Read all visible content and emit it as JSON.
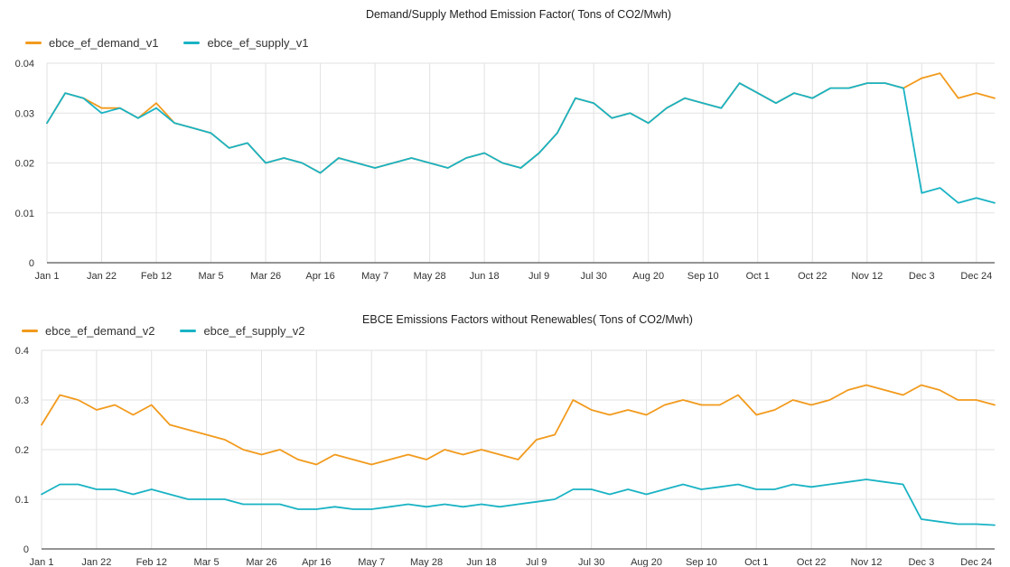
{
  "colors": {
    "demand": "#f29a1c",
    "supply": "#19b3c4",
    "grid": "#e2e2e2",
    "axis": "#555555"
  },
  "chart_data": [
    {
      "type": "line",
      "title": "Demand/Supply Method Emission Factor( Tons of CO2/Mwh)",
      "xlabel": "",
      "ylabel": "",
      "ylim": [
        0,
        0.04
      ],
      "y_ticks": [
        "0",
        "0.01",
        "0.02",
        "0.03",
        "0.04"
      ],
      "x_ticks": [
        "Jan 1",
        "Jan 22",
        "Feb 12",
        "Mar 5",
        "Mar 26",
        "Apr 16",
        "May 7",
        "May 28",
        "Jun 18",
        "Jul 9",
        "Jul 30",
        "Aug 20",
        "Sep 10",
        "Oct 1",
        "Oct 22",
        "Nov 12",
        "Dec 3",
        "Dec 24"
      ],
      "grid": true,
      "legend": "top-left",
      "series": [
        {
          "name": "ebce_ef_demand_v1",
          "x": [
            "Jan 1",
            "Jan 8",
            "Jan 15",
            "Jan 22",
            "Jan 29",
            "Feb 5",
            "Feb 12",
            "Feb 19",
            "Feb 26",
            "Mar 5",
            "Mar 12",
            "Mar 19",
            "Mar 26",
            "Apr 2",
            "Apr 9",
            "Apr 16",
            "Apr 23",
            "Apr 30",
            "May 7",
            "May 14",
            "May 21",
            "May 28",
            "Jun 4",
            "Jun 11",
            "Jun 18",
            "Jun 25",
            "Jul 2",
            "Jul 9",
            "Jul 16",
            "Jul 23",
            "Jul 30",
            "Aug 6",
            "Aug 13",
            "Aug 20",
            "Aug 27",
            "Sep 3",
            "Sep 10",
            "Sep 17",
            "Sep 24",
            "Oct 1",
            "Oct 8",
            "Oct 15",
            "Oct 22",
            "Oct 29",
            "Nov 5",
            "Nov 12",
            "Nov 19",
            "Nov 26",
            "Dec 3",
            "Dec 10",
            "Dec 17",
            "Dec 24",
            "Dec 31"
          ],
          "values": [
            0.028,
            0.034,
            0.033,
            0.031,
            0.031,
            0.029,
            0.032,
            0.028,
            0.027,
            0.026,
            0.023,
            0.024,
            0.02,
            0.021,
            0.02,
            0.018,
            0.021,
            0.02,
            0.019,
            0.02,
            0.021,
            0.02,
            0.019,
            0.021,
            0.022,
            0.02,
            0.019,
            0.022,
            0.026,
            0.033,
            0.032,
            0.029,
            0.03,
            0.028,
            0.031,
            0.033,
            0.032,
            0.031,
            0.036,
            0.034,
            0.032,
            0.034,
            0.033,
            0.035,
            0.035,
            0.036,
            0.036,
            0.035,
            0.037,
            0.038,
            0.033,
            0.034,
            0.033
          ]
        },
        {
          "name": "ebce_ef_supply_v1",
          "x": [
            "Jan 1",
            "Jan 8",
            "Jan 15",
            "Jan 22",
            "Jan 29",
            "Feb 5",
            "Feb 12",
            "Feb 19",
            "Feb 26",
            "Mar 5",
            "Mar 12",
            "Mar 19",
            "Mar 26",
            "Apr 2",
            "Apr 9",
            "Apr 16",
            "Apr 23",
            "Apr 30",
            "May 7",
            "May 14",
            "May 21",
            "May 28",
            "Jun 4",
            "Jun 11",
            "Jun 18",
            "Jun 25",
            "Jul 2",
            "Jul 9",
            "Jul 16",
            "Jul 23",
            "Jul 30",
            "Aug 6",
            "Aug 13",
            "Aug 20",
            "Aug 27",
            "Sep 3",
            "Sep 10",
            "Sep 17",
            "Sep 24",
            "Oct 1",
            "Oct 8",
            "Oct 15",
            "Oct 22",
            "Oct 29",
            "Nov 5",
            "Nov 12",
            "Nov 19",
            "Nov 26",
            "Dec 3",
            "Dec 10",
            "Dec 17",
            "Dec 24",
            "Dec 31"
          ],
          "values": [
            0.028,
            0.034,
            0.033,
            0.03,
            0.031,
            0.029,
            0.031,
            0.028,
            0.027,
            0.026,
            0.023,
            0.024,
            0.02,
            0.021,
            0.02,
            0.018,
            0.021,
            0.02,
            0.019,
            0.02,
            0.021,
            0.02,
            0.019,
            0.021,
            0.022,
            0.02,
            0.019,
            0.022,
            0.026,
            0.033,
            0.032,
            0.029,
            0.03,
            0.028,
            0.031,
            0.033,
            0.032,
            0.031,
            0.036,
            0.034,
            0.032,
            0.034,
            0.033,
            0.035,
            0.035,
            0.036,
            0.036,
            0.035,
            0.014,
            0.015,
            0.012,
            0.013,
            0.012
          ]
        }
      ]
    },
    {
      "type": "line",
      "title": "EBCE Emissions Factors without Renewables( Tons of CO2/Mwh)",
      "xlabel": "",
      "ylabel": "",
      "ylim": [
        0,
        0.4
      ],
      "y_ticks": [
        "0",
        "0.1",
        "0.2",
        "0.3",
        "0.4"
      ],
      "x_ticks": [
        "Jan 1",
        "Jan 22",
        "Feb 12",
        "Mar 5",
        "Mar 26",
        "Apr 16",
        "May 7",
        "May 28",
        "Jun 18",
        "Jul 9",
        "Jul 30",
        "Aug 20",
        "Sep 10",
        "Oct 1",
        "Oct 22",
        "Nov 12",
        "Dec 3",
        "Dec 24"
      ],
      "grid": true,
      "legend": "top-left",
      "series": [
        {
          "name": "ebce_ef_demand_v2",
          "x": [
            "Jan 1",
            "Jan 8",
            "Jan 15",
            "Jan 22",
            "Jan 29",
            "Feb 5",
            "Feb 12",
            "Feb 19",
            "Feb 26",
            "Mar 5",
            "Mar 12",
            "Mar 19",
            "Mar 26",
            "Apr 2",
            "Apr 9",
            "Apr 16",
            "Apr 23",
            "Apr 30",
            "May 7",
            "May 14",
            "May 21",
            "May 28",
            "Jun 4",
            "Jun 11",
            "Jun 18",
            "Jun 25",
            "Jul 2",
            "Jul 9",
            "Jul 16",
            "Jul 23",
            "Jul 30",
            "Aug 6",
            "Aug 13",
            "Aug 20",
            "Aug 27",
            "Sep 3",
            "Sep 10",
            "Sep 17",
            "Sep 24",
            "Oct 1",
            "Oct 8",
            "Oct 15",
            "Oct 22",
            "Oct 29",
            "Nov 5",
            "Nov 12",
            "Nov 19",
            "Nov 26",
            "Dec 3",
            "Dec 10",
            "Dec 17",
            "Dec 24",
            "Dec 31"
          ],
          "values": [
            0.25,
            0.31,
            0.3,
            0.28,
            0.29,
            0.27,
            0.29,
            0.25,
            0.24,
            0.23,
            0.22,
            0.2,
            0.19,
            0.2,
            0.18,
            0.17,
            0.19,
            0.18,
            0.17,
            0.18,
            0.19,
            0.18,
            0.2,
            0.19,
            0.2,
            0.19,
            0.18,
            0.22,
            0.23,
            0.3,
            0.28,
            0.27,
            0.28,
            0.27,
            0.29,
            0.3,
            0.29,
            0.29,
            0.31,
            0.27,
            0.28,
            0.3,
            0.29,
            0.3,
            0.32,
            0.33,
            0.32,
            0.31,
            0.33,
            0.32,
            0.3,
            0.3,
            0.29
          ]
        },
        {
          "name": "ebce_ef_supply_v2",
          "x": [
            "Jan 1",
            "Jan 8",
            "Jan 15",
            "Jan 22",
            "Jan 29",
            "Feb 5",
            "Feb 12",
            "Feb 19",
            "Feb 26",
            "Mar 5",
            "Mar 12",
            "Mar 19",
            "Mar 26",
            "Apr 2",
            "Apr 9",
            "Apr 16",
            "Apr 23",
            "Apr 30",
            "May 7",
            "May 14",
            "May 21",
            "May 28",
            "Jun 4",
            "Jun 11",
            "Jun 18",
            "Jun 25",
            "Jul 2",
            "Jul 9",
            "Jul 16",
            "Jul 23",
            "Jul 30",
            "Aug 6",
            "Aug 13",
            "Aug 20",
            "Aug 27",
            "Sep 3",
            "Sep 10",
            "Sep 17",
            "Sep 24",
            "Oct 1",
            "Oct 8",
            "Oct 15",
            "Oct 22",
            "Oct 29",
            "Nov 5",
            "Nov 12",
            "Nov 19",
            "Nov 26",
            "Dec 3",
            "Dec 10",
            "Dec 17",
            "Dec 24",
            "Dec 31"
          ],
          "values": [
            0.11,
            0.13,
            0.13,
            0.12,
            0.12,
            0.11,
            0.12,
            0.11,
            0.1,
            0.1,
            0.1,
            0.09,
            0.09,
            0.09,
            0.08,
            0.08,
            0.085,
            0.08,
            0.08,
            0.085,
            0.09,
            0.085,
            0.09,
            0.085,
            0.09,
            0.085,
            0.09,
            0.095,
            0.1,
            0.12,
            0.12,
            0.11,
            0.12,
            0.11,
            0.12,
            0.13,
            0.12,
            0.125,
            0.13,
            0.12,
            0.12,
            0.13,
            0.125,
            0.13,
            0.135,
            0.14,
            0.135,
            0.13,
            0.06,
            0.055,
            0.05,
            0.05,
            0.048
          ]
        }
      ]
    }
  ]
}
